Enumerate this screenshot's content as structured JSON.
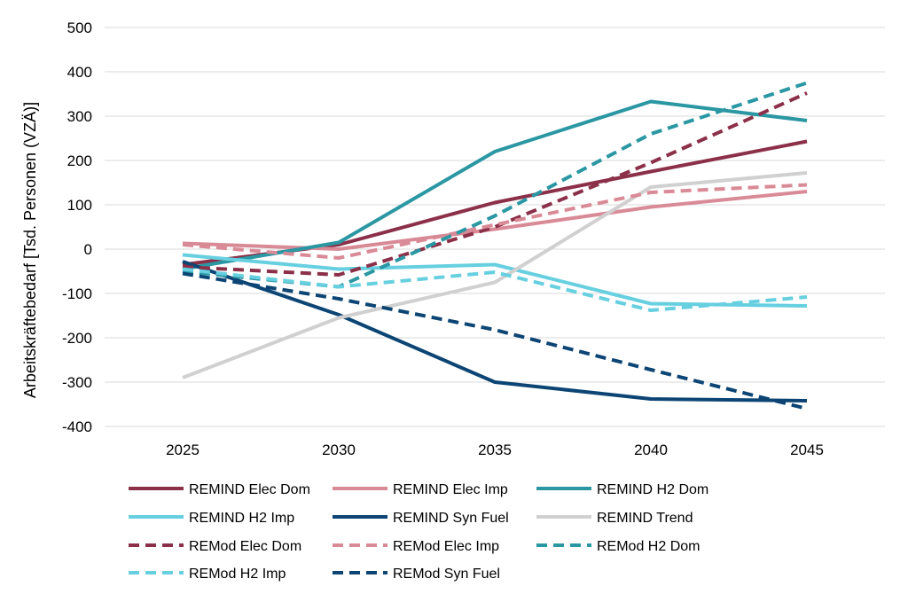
{
  "chart_data": {
    "type": "line",
    "title": "",
    "xlabel": "",
    "ylabel": "Arbeitskräftebedarf [Tsd. Personen (VZÄ)]",
    "x": [
      "2025",
      "2030",
      "2035",
      "2040",
      "2045"
    ],
    "ylim": [
      -400,
      500
    ],
    "yticks": [
      "500",
      "400",
      "300",
      "200",
      "100",
      "0",
      "-100",
      "-200",
      "-300",
      "-400"
    ],
    "grid": true,
    "legend_position": "bottom",
    "series": [
      {
        "name": "REMIND Elec Dom",
        "color": "#8B3048",
        "dash": "solid",
        "values": [
          -35,
          10,
          105,
          175,
          243
        ]
      },
      {
        "name": "REMIND Elec Imp",
        "color": "#D98A97",
        "dash": "solid",
        "values": [
          13,
          0,
          45,
          95,
          130
        ]
      },
      {
        "name": "REMIND H2 Dom",
        "color": "#2A97A3",
        "dash": "solid",
        "values": [
          -45,
          15,
          220,
          333,
          290
        ]
      },
      {
        "name": "REMIND H2 Imp",
        "color": "#66CFE0",
        "dash": "solid",
        "values": [
          -13,
          -45,
          -35,
          -123,
          -128
        ]
      },
      {
        "name": "REMIND Syn Fuel",
        "color": "#0C4574",
        "dash": "solid",
        "values": [
          -28,
          -148,
          -300,
          -338,
          -342
        ]
      },
      {
        "name": "REMIND Trend",
        "color": "#D0D0D0",
        "dash": "solid",
        "values": [
          -290,
          -155,
          -75,
          140,
          172
        ]
      },
      {
        "name": "REMod Elec Dom",
        "color": "#8B3048",
        "dash": "dashed",
        "values": [
          -40,
          -58,
          50,
          195,
          352
        ]
      },
      {
        "name": "REMod Elec Imp",
        "color": "#D98A97",
        "dash": "dashed",
        "values": [
          10,
          -20,
          55,
          128,
          145
        ]
      },
      {
        "name": "REMod H2 Dom",
        "color": "#2A97A3",
        "dash": "dashed",
        "values": [
          -50,
          -85,
          75,
          260,
          375
        ]
      },
      {
        "name": "REMod H2 Imp",
        "color": "#66CFE0",
        "dash": "dashed",
        "values": [
          -45,
          -85,
          -52,
          -138,
          -108
        ]
      },
      {
        "name": "REMod Syn Fuel",
        "color": "#0C4574",
        "dash": "dashed",
        "values": [
          -55,
          -112,
          -182,
          -272,
          -360
        ]
      }
    ]
  }
}
